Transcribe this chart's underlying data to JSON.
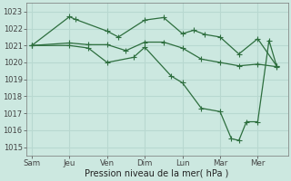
{
  "background_color": "#cce8e0",
  "line_color": "#2d6e3e",
  "grid_color": "#b8d8d0",
  "xlabel": "Pression niveau de la mer( hPa )",
  "ylim": [
    1014.5,
    1023.5
  ],
  "yticks": [
    1015,
    1016,
    1017,
    1018,
    1019,
    1020,
    1021,
    1022,
    1023
  ],
  "day_labels": [
    "Sam",
    "Jeu",
    "Ven",
    "Dim",
    "Lun",
    "Mar",
    "Mer"
  ],
  "day_positions": [
    0,
    1,
    2,
    3,
    4,
    5,
    6
  ],
  "vline_positions": [
    1,
    2,
    3,
    4,
    5,
    6
  ],
  "series1_x": [
    0.0,
    1.0,
    1.15,
    2.0,
    2.3,
    3.0,
    3.5,
    4.0,
    4.3,
    4.6,
    5.0,
    5.5,
    6.0,
    6.5
  ],
  "series1_y": [
    1021.0,
    1022.7,
    1022.55,
    1021.85,
    1021.5,
    1022.5,
    1022.65,
    1021.7,
    1021.9,
    1021.65,
    1021.5,
    1020.5,
    1021.4,
    1019.8
  ],
  "series2_x": [
    0.0,
    1.0,
    1.5,
    2.0,
    2.5,
    3.0,
    3.5,
    4.0,
    4.5,
    5.0,
    5.5,
    6.0,
    6.5
  ],
  "series2_y": [
    1021.0,
    1021.15,
    1021.05,
    1021.05,
    1020.7,
    1021.2,
    1021.2,
    1020.85,
    1020.2,
    1020.0,
    1019.8,
    1019.9,
    1019.75
  ],
  "series3_x": [
    0.0,
    1.0,
    1.5,
    2.0,
    2.7,
    3.0,
    3.7,
    4.0,
    4.5,
    5.0,
    5.3,
    5.5,
    5.7,
    6.0,
    6.3,
    6.5
  ],
  "series3_y": [
    1021.0,
    1021.0,
    1020.85,
    1020.0,
    1020.3,
    1020.9,
    1019.2,
    1018.8,
    1017.3,
    1017.1,
    1015.5,
    1015.4,
    1016.5,
    1016.5,
    1021.3,
    1019.8
  ]
}
